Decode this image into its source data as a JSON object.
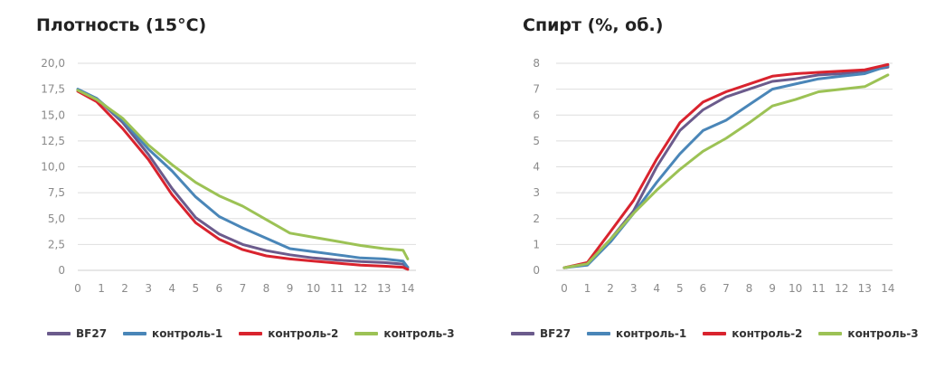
{
  "chart_data": [
    {
      "type": "line",
      "title": "Плотность (15°C)",
      "xlabel": "",
      "ylabel": "",
      "ylim": [
        0,
        20
      ],
      "y_ticks": [
        "0",
        "2,5",
        "5,0",
        "7,5",
        "10,0",
        "12,5",
        "15,0",
        "17,5",
        "20,0"
      ],
      "x_ticks": [
        "0",
        "1",
        "2",
        "3",
        "4",
        "5",
        "6",
        "7",
        "8",
        "9",
        "10",
        "11",
        "12",
        "13",
        "14"
      ],
      "grid": true,
      "legend_position": "bottom",
      "series": [
        {
          "name": "BF27",
          "color": "#6b5b8c",
          "x": [
            0,
            0.8,
            1.9,
            3,
            4,
            5,
            6,
            7,
            8,
            9,
            10,
            11,
            12,
            13,
            13.8,
            14
          ],
          "y": [
            17.4,
            16.6,
            14.3,
            11.2,
            7.9,
            5.1,
            3.5,
            2.5,
            1.9,
            1.5,
            1.2,
            1.0,
            0.85,
            0.75,
            0.6,
            0.3
          ]
        },
        {
          "name": "контроль-1",
          "color": "#4a86b8",
          "x": [
            0,
            0.8,
            1.9,
            3,
            4,
            5,
            6,
            7,
            8,
            9,
            10,
            11,
            12,
            13,
            13.8,
            14
          ],
          "y": [
            17.5,
            16.6,
            14.5,
            11.7,
            9.6,
            7.1,
            5.2,
            4.1,
            3.1,
            2.1,
            1.8,
            1.5,
            1.2,
            1.1,
            0.9,
            0.3
          ]
        },
        {
          "name": "контроль-2",
          "color": "#d9232e",
          "x": [
            0,
            0.8,
            1.9,
            3,
            4,
            5,
            6,
            7,
            8,
            9,
            10,
            11,
            12,
            13,
            13.8,
            14
          ],
          "y": [
            17.3,
            16.3,
            13.7,
            10.7,
            7.3,
            4.6,
            3.0,
            2.0,
            1.4,
            1.1,
            0.9,
            0.7,
            0.5,
            0.4,
            0.3,
            0.1
          ]
        },
        {
          "name": "контроль-3",
          "color": "#9cc255",
          "x": [
            0,
            0.8,
            1.9,
            3,
            4,
            5,
            6,
            7,
            8,
            9,
            10,
            11,
            12,
            13,
            13.8,
            14
          ],
          "y": [
            17.4,
            16.5,
            14.7,
            12.1,
            10.2,
            8.5,
            7.2,
            6.2,
            4.9,
            3.6,
            3.2,
            2.8,
            2.4,
            2.1,
            1.95,
            1.1
          ]
        }
      ]
    },
    {
      "type": "line",
      "title": "Спирт (%, об.)",
      "xlabel": "",
      "ylabel": "",
      "ylim": [
        0,
        8
      ],
      "y_ticks": [
        "0",
        "1",
        "2",
        "3",
        "4",
        "5",
        "6",
        "7",
        "8"
      ],
      "x_ticks": [
        "0",
        "1",
        "2",
        "3",
        "4",
        "5",
        "6",
        "7",
        "8",
        "9",
        "10",
        "11",
        "12",
        "13",
        "14"
      ],
      "grid": true,
      "legend_position": "bottom",
      "series": [
        {
          "name": "BF27",
          "color": "#6b5b8c",
          "x": [
            0,
            1,
            2,
            3,
            4,
            5,
            6,
            7,
            8,
            9,
            10,
            11,
            12,
            13,
            14
          ],
          "y": [
            0.1,
            0.25,
            1.2,
            2.3,
            4.0,
            5.4,
            6.2,
            6.7,
            7.0,
            7.3,
            7.4,
            7.55,
            7.6,
            7.7,
            7.85
          ]
        },
        {
          "name": "контроль-1",
          "color": "#4a86b8",
          "x": [
            0,
            1,
            2,
            3,
            4,
            5,
            6,
            7,
            8,
            9,
            10,
            11,
            12,
            13,
            14
          ],
          "y": [
            0.1,
            0.2,
            1.1,
            2.2,
            3.4,
            4.5,
            5.4,
            5.8,
            6.4,
            7.0,
            7.2,
            7.4,
            7.5,
            7.6,
            7.9
          ]
        },
        {
          "name": "контроль-2",
          "color": "#d9232e",
          "x": [
            0,
            1,
            2,
            3,
            4,
            5,
            6,
            7,
            8,
            9,
            10,
            11,
            12,
            13,
            14
          ],
          "y": [
            0.1,
            0.3,
            1.5,
            2.7,
            4.3,
            5.7,
            6.5,
            6.9,
            7.2,
            7.5,
            7.6,
            7.65,
            7.7,
            7.75,
            7.95
          ]
        },
        {
          "name": "контроль-3",
          "color": "#9cc255",
          "x": [
            0,
            1,
            2,
            3,
            4,
            5,
            6,
            7,
            8,
            9,
            10,
            11,
            12,
            13,
            14
          ],
          "y": [
            0.1,
            0.25,
            1.2,
            2.2,
            3.1,
            3.9,
            4.6,
            5.1,
            5.7,
            6.35,
            6.6,
            6.9,
            7.0,
            7.1,
            7.55
          ]
        }
      ]
    }
  ]
}
